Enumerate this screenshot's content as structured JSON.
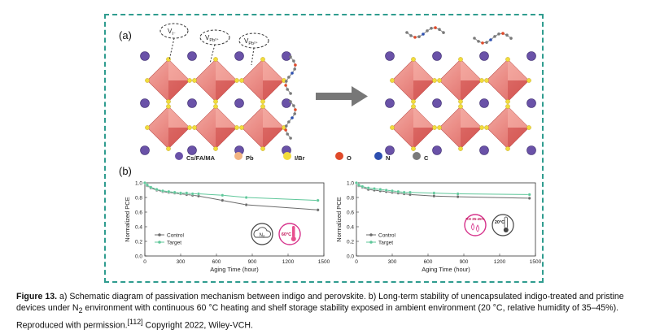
{
  "figure": {
    "panel_a_label": "(a)",
    "panel_b_label": "(b)",
    "vacancy_labels": [
      "Vᴵ⁻",
      "Vₚᵦ²⁺",
      "Vₚᵦ²⁺"
    ],
    "vacancy_texts": [
      "V",
      "V",
      "V"
    ],
    "vacancy_subs": [
      "I⁻",
      "Pb²⁺",
      "Pb²⁺"
    ]
  },
  "legend": [
    {
      "label": "Cs/FA/MA",
      "color": "#6a52a8"
    },
    {
      "label": "Pb",
      "color": "#f2b483"
    },
    {
      "label": "I/Br",
      "color": "#f2dc3c"
    },
    {
      "label": "O",
      "color": "#e04a2a"
    },
    {
      "label": "N",
      "color": "#2d4fb0"
    },
    {
      "label": "C",
      "color": "#7a7a7a"
    }
  ],
  "badges": {
    "n2": "N₂",
    "temp60": "60°C",
    "rh": "RH 35-45%",
    "temp20": "20°C"
  },
  "chart_data": [
    {
      "type": "line",
      "title": "",
      "xlabel": "Aging Time (hour)",
      "ylabel": "Normalized PCE",
      "xlim": [
        0,
        1500
      ],
      "ylim": [
        0.0,
        1.0
      ],
      "xticks": [
        "0",
        "300",
        "600",
        "900",
        "1200",
        "1500"
      ],
      "yticks": [
        "0.0",
        "0.2",
        "0.4",
        "0.6",
        "0.8",
        "1.0"
      ],
      "legend_position": "bottom-left",
      "series": [
        {
          "name": "Control",
          "color": "#6b6b6b",
          "x": [
            0,
            20,
            50,
            100,
            150,
            200,
            250,
            300,
            350,
            400,
            450,
            650,
            850,
            1450
          ],
          "y": [
            1.0,
            0.96,
            0.93,
            0.9,
            0.88,
            0.87,
            0.86,
            0.85,
            0.84,
            0.83,
            0.82,
            0.76,
            0.7,
            0.63
          ]
        },
        {
          "name": "Target",
          "color": "#5fc79a",
          "x": [
            0,
            20,
            50,
            100,
            150,
            200,
            250,
            300,
            350,
            400,
            450,
            650,
            850,
            1450
          ],
          "y": [
            1.0,
            0.97,
            0.94,
            0.91,
            0.89,
            0.88,
            0.87,
            0.86,
            0.86,
            0.85,
            0.85,
            0.83,
            0.8,
            0.76
          ]
        }
      ]
    },
    {
      "type": "line",
      "title": "",
      "xlabel": "Aging Time (hour)",
      "ylabel": "Normalized PCE",
      "xlim": [
        0,
        1500
      ],
      "ylim": [
        0.0,
        1.0
      ],
      "xticks": [
        "0",
        "300",
        "600",
        "900",
        "1200",
        "1500"
      ],
      "yticks": [
        "0.0",
        "0.2",
        "0.4",
        "0.6",
        "0.8",
        "1.0"
      ],
      "legend_position": "bottom-left",
      "series": [
        {
          "name": "Control",
          "color": "#6b6b6b",
          "x": [
            0,
            20,
            50,
            100,
            150,
            200,
            250,
            300,
            350,
            400,
            450,
            650,
            850,
            1450
          ],
          "y": [
            1.0,
            0.96,
            0.94,
            0.91,
            0.9,
            0.89,
            0.88,
            0.87,
            0.86,
            0.85,
            0.84,
            0.82,
            0.81,
            0.79
          ]
        },
        {
          "name": "Target",
          "color": "#5fc79a",
          "x": [
            0,
            20,
            50,
            100,
            150,
            200,
            250,
            300,
            350,
            400,
            450,
            650,
            850,
            1450
          ],
          "y": [
            1.0,
            0.97,
            0.95,
            0.93,
            0.92,
            0.91,
            0.9,
            0.89,
            0.88,
            0.87,
            0.87,
            0.86,
            0.85,
            0.84
          ]
        }
      ]
    }
  ],
  "caption": {
    "label": "Figure 13.",
    "text1": "a) Schematic diagram of passivation mechanism between indigo and perovskite. b) Long-term stability of unencapsulated indigo-treated and pristine devices under N",
    "sub": "2",
    "text2": " environment with continuous 60 °C heating and shelf storage stability exposed in ambient environment (20 °C, relative humidity of 35–45%). Reproduced with permission.",
    "ref": "[112]",
    "text3": " Copyright 2022, Wiley-VCH."
  }
}
